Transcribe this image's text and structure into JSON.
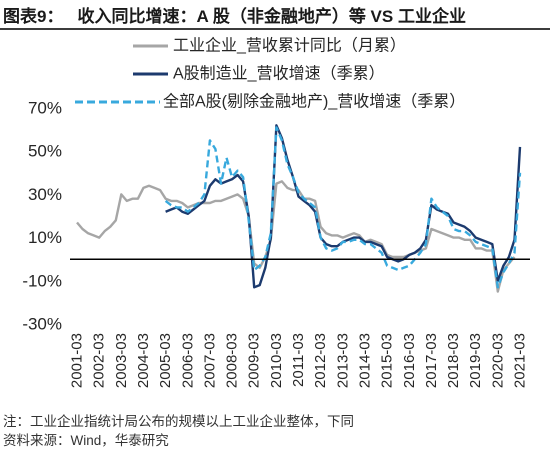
{
  "header": {
    "label": "图表9："
  },
  "footer": {
    "note": "注：工业企业指统计局公布的规模以上工业企业整体，下同",
    "source": "资料来源：Wind，华泰研究"
  },
  "chart_data": {
    "type": "line",
    "title": "收入同比增速：A 股（非金融地产）等 VS 工业企业",
    "ylim": [
      -30,
      70
    ],
    "y_ticks": [
      "70%",
      "50%",
      "30%",
      "10%",
      "-10%",
      "-30%"
    ],
    "x_ticks": [
      "2001-03",
      "2002-03",
      "2003-03",
      "2004-03",
      "2005-03",
      "2006-03",
      "2007-03",
      "2008-03",
      "2009-03",
      "2010-03",
      "2011-03",
      "2012-03",
      "2013-03",
      "2014-03",
      "2015-03",
      "2016-03",
      "2017-03",
      "2018-03",
      "2019-03",
      "2020-03",
      "2021-03"
    ],
    "grid": false,
    "legend_position": "top",
    "x": [
      "2001-03",
      "2001-06",
      "2001-09",
      "2001-12",
      "2002-03",
      "2002-06",
      "2002-09",
      "2002-12",
      "2003-03",
      "2003-06",
      "2003-09",
      "2003-12",
      "2004-03",
      "2004-06",
      "2004-09",
      "2004-12",
      "2005-03",
      "2005-06",
      "2005-09",
      "2005-12",
      "2006-03",
      "2006-06",
      "2006-09",
      "2006-12",
      "2007-03",
      "2007-06",
      "2007-09",
      "2007-12",
      "2008-03",
      "2008-06",
      "2008-09",
      "2008-12",
      "2009-03",
      "2009-06",
      "2009-09",
      "2009-12",
      "2010-03",
      "2010-06",
      "2010-09",
      "2010-12",
      "2011-03",
      "2011-06",
      "2011-09",
      "2011-12",
      "2012-03",
      "2012-06",
      "2012-09",
      "2012-12",
      "2013-03",
      "2013-06",
      "2013-09",
      "2013-12",
      "2014-03",
      "2014-06",
      "2014-09",
      "2014-12",
      "2015-03",
      "2015-06",
      "2015-09",
      "2015-12",
      "2016-03",
      "2016-06",
      "2016-09",
      "2016-12",
      "2017-03",
      "2017-06",
      "2017-09",
      "2017-12",
      "2018-03",
      "2018-06",
      "2018-09",
      "2018-12",
      "2019-03",
      "2019-06",
      "2019-09",
      "2019-12",
      "2020-03",
      "2020-06",
      "2020-09",
      "2020-12",
      "2021-03"
    ],
    "series": [
      {
        "name": "工业企业_营收累计同比（月累）",
        "color": "#a6a6a6",
        "values": [
          17,
          14,
          12,
          11,
          10,
          13,
          15,
          18,
          30,
          27,
          28,
          28,
          33,
          34,
          33,
          32,
          28,
          27,
          27,
          26,
          24,
          25,
          26,
          26,
          26,
          27,
          27,
          28,
          29,
          30,
          28,
          20,
          -2,
          -4,
          1,
          9,
          35,
          36,
          33,
          32,
          32,
          28,
          28,
          27,
          15,
          12,
          11,
          11,
          10,
          11,
          12,
          11,
          8,
          9,
          8,
          7,
          2,
          1,
          1,
          1,
          2,
          3,
          4,
          5,
          14,
          13,
          12,
          11,
          10,
          10,
          9,
          9,
          5,
          5,
          4,
          4,
          -15,
          -5,
          -2,
          1,
          null
        ]
      },
      {
        "name": "A股制造业_营收增速（季累）",
        "color": "#1c3a6e",
        "values": [
          null,
          null,
          null,
          null,
          null,
          null,
          null,
          null,
          null,
          null,
          null,
          null,
          null,
          null,
          null,
          null,
          22,
          23,
          24,
          22,
          21,
          23,
          25,
          27,
          34,
          37,
          35,
          36,
          37,
          39,
          36,
          20,
          -13,
          -12,
          -4,
          10,
          62,
          56,
          46,
          38,
          29,
          27,
          25,
          22,
          10,
          7,
          6,
          6,
          8,
          9,
          10,
          10,
          8,
          8,
          7,
          6,
          1,
          0,
          -1,
          0,
          2,
          3,
          5,
          9,
          25,
          23,
          22,
          21,
          17,
          16,
          15,
          13,
          10,
          9,
          8,
          7,
          -10,
          -3,
          1,
          9,
          52
        ]
      },
      {
        "name": "全部A股(剔除金融地产)_营收增速（季累）",
        "color": "#38a9dd",
        "values": [
          null,
          null,
          null,
          null,
          null,
          null,
          null,
          null,
          null,
          null,
          null,
          null,
          null,
          null,
          null,
          null,
          27,
          25,
          24,
          24,
          22,
          24,
          26,
          30,
          55,
          51,
          35,
          47,
          38,
          41,
          38,
          18,
          -5,
          -3,
          1,
          12,
          61,
          55,
          44,
          38,
          31,
          28,
          26,
          24,
          10,
          5,
          4,
          5,
          8,
          8,
          9,
          9,
          7,
          7,
          5,
          3,
          -3,
          -4,
          -5,
          -4,
          -3,
          0,
          3,
          7,
          28,
          24,
          22,
          20,
          14,
          13,
          13,
          11,
          8,
          7,
          6,
          5,
          -13,
          -6,
          -2,
          3,
          40
        ]
      }
    ]
  }
}
